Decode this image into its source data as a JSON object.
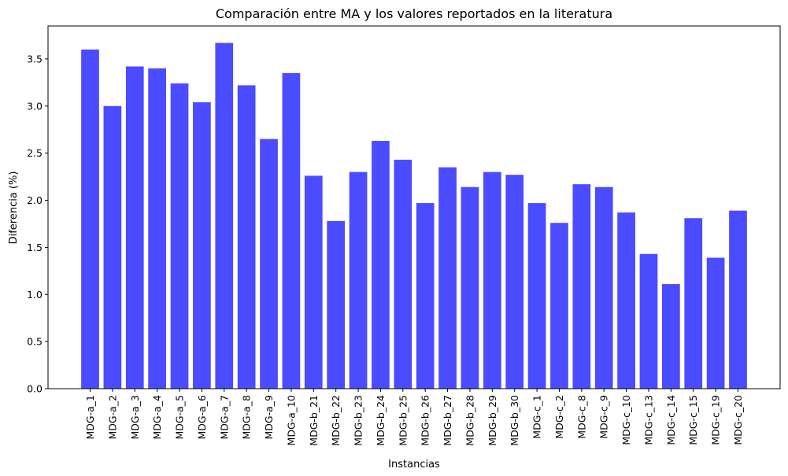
{
  "chart_data": {
    "type": "bar",
    "title": "Comparación entre MA y los valores reportados en la literatura",
    "xlabel": "Instancias",
    "ylabel": "Diferencia (%)",
    "ylim": [
      0,
      3.85
    ],
    "yticks": [
      "0.0",
      "0.5",
      "1.0",
      "1.5",
      "2.0",
      "2.5",
      "3.0",
      "3.5"
    ],
    "bar_color": "#4b4bff",
    "grid": false,
    "categories": [
      "MDG-a_1",
      "MDG-a_2",
      "MDG-a_3",
      "MDG-a_4",
      "MDG-a_5",
      "MDG-a_6",
      "MDG-a_7",
      "MDG-a_8",
      "MDG-a_9",
      "MDG-a_10",
      "MDG-b_21",
      "MDG-b_22",
      "MDG-b_23",
      "MDG-b_24",
      "MDG-b_25",
      "MDG-b_26",
      "MDG-b_27",
      "MDG-b_28",
      "MDG-b_29",
      "MDG-b_30",
      "MDG-c_1",
      "MDG-c_2",
      "MDG-c_8",
      "MDG-c_9",
      "MDG-c_10",
      "MDG-c_13",
      "MDG-c_14",
      "MDG-c_15",
      "MDG-c_19",
      "MDG-c_20"
    ],
    "values": [
      3.6,
      3.0,
      3.42,
      3.4,
      3.24,
      3.04,
      3.67,
      3.22,
      2.65,
      3.35,
      2.26,
      1.78,
      2.3,
      2.63,
      2.43,
      1.97,
      2.35,
      2.14,
      2.3,
      2.27,
      1.97,
      1.76,
      2.17,
      2.14,
      1.87,
      1.43,
      1.11,
      1.81,
      1.39,
      1.89
    ]
  }
}
